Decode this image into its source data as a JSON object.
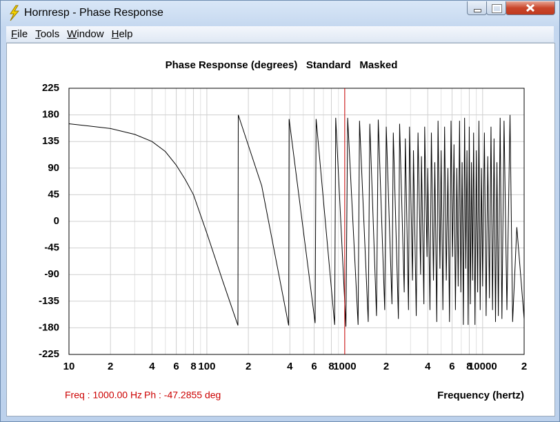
{
  "window": {
    "title": "Hornresp - Phase Response"
  },
  "menu": [
    "File",
    "Tools",
    "Window",
    "Help"
  ],
  "status": {
    "freq": "Freq : 1000.00 Hz",
    "phase": "Ph : -47.2855 deg"
  },
  "chart_data": {
    "type": "line",
    "title": "Phase Response (degrees)   Standard   Masked",
    "xlabel": "Frequency (hertz)",
    "xlog": true,
    "grid": true,
    "xlim": [
      10,
      20000
    ],
    "ylim": [
      -225,
      225
    ],
    "yticks": [
      225,
      180,
      135,
      90,
      45,
      0,
      -45,
      -90,
      -135,
      -180,
      -225
    ],
    "xticks": [
      10,
      {
        "value": 20,
        "label": "2"
      },
      {
        "value": 40,
        "label": "4"
      },
      {
        "value": 60,
        "label": "6"
      },
      {
        "value": 80,
        "label": "8"
      },
      100,
      {
        "value": 200,
        "label": "2"
      },
      {
        "value": 400,
        "label": "4"
      },
      {
        "value": 600,
        "label": "6"
      },
      {
        "value": 800,
        "label": "8"
      },
      1000,
      {
        "value": 2000,
        "label": "2"
      },
      {
        "value": 4000,
        "label": "4"
      },
      {
        "value": 6000,
        "label": "6"
      },
      {
        "value": 8000,
        "label": "8"
      },
      10000,
      {
        "value": 20000,
        "label": "2"
      }
    ],
    "xminor": [
      30,
      50,
      70,
      90,
      300,
      500,
      700,
      900,
      3000,
      5000,
      7000,
      9000
    ],
    "cursor_x": 1000,
    "cursor_color": "#cc0000",
    "x": [
      10,
      20,
      30,
      40,
      50,
      60,
      70,
      80,
      100,
      130,
      168,
      169,
      250,
      392,
      395,
      610,
      620,
      845,
      860,
      1020,
      1050,
      1250,
      1280,
      1480,
      1520,
      1700,
      1750,
      1950,
      2000,
      2200,
      2250,
      2450,
      2500,
      2700,
      2750,
      2900,
      2950,
      3100,
      3150,
      3300,
      3400,
      3550,
      3600,
      3750,
      3800,
      3950,
      4000,
      4150,
      4250,
      4400,
      4500,
      4650,
      4750,
      4900,
      5000,
      5150,
      5300,
      5450,
      5600,
      5750,
      5900,
      6050,
      6200,
      6350,
      6500,
      6650,
      6800,
      6950,
      7100,
      7250,
      7400,
      7550,
      7700,
      7850,
      8000,
      8150,
      8300,
      8450,
      8600,
      8800,
      9000,
      9200,
      9400,
      9600,
      9800,
      10000,
      10300,
      10600,
      10900,
      11200,
      11500,
      11800,
      12100,
      12400,
      12700,
      13000,
      13400,
      13800,
      14300,
      15000,
      15800,
      16500,
      17700,
      20000
    ],
    "series": [
      {
        "color": "#000000",
        "values": [
          165,
          157,
          147,
          135,
          118,
          95,
          70,
          45,
          -20,
          -100,
          -176,
          180,
          60,
          -176,
          173,
          -172,
          173,
          -175,
          175,
          -178,
          175,
          -175,
          170,
          -170,
          165,
          -160,
          172,
          -150,
          160,
          -140,
          150,
          -165,
          165,
          -120,
          140,
          -150,
          160,
          -100,
          120,
          -160,
          150,
          -90,
          110,
          -140,
          160,
          -60,
          90,
          -150,
          150,
          -100,
          100,
          -170,
          170,
          -80,
          120,
          -150,
          160,
          -100,
          90,
          -170,
          170,
          -60,
          130,
          -150,
          90,
          -110,
          170,
          -120,
          100,
          -175,
          175,
          -80,
          120,
          -175,
          160,
          -140,
          100,
          -100,
          150,
          -175,
          120,
          -120,
          170,
          -150,
          90,
          -110,
          150,
          -160,
          110,
          -130,
          160,
          -150,
          140,
          -170,
          100,
          -160,
          175,
          -165,
          170,
          -150,
          180,
          -170,
          -10,
          -165
        ]
      }
    ]
  }
}
